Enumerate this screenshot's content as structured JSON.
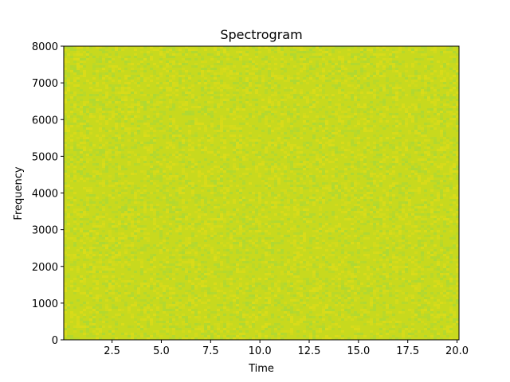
{
  "chart_data": {
    "type": "heatmap",
    "title": "Spectrogram",
    "xlabel": "Time",
    "ylabel": "Frequency",
    "xlim": [
      0.05,
      20.1
    ],
    "ylim": [
      0,
      8000
    ],
    "x_ticks": [
      2.5,
      5.0,
      7.5,
      10.0,
      12.5,
      15.0,
      17.5,
      20.0
    ],
    "x_tick_labels": [
      "2.5",
      "5.0",
      "7.5",
      "10.0",
      "12.5",
      "15.0",
      "17.5",
      "20.0"
    ],
    "y_ticks": [
      0,
      1000,
      2000,
      3000,
      4000,
      5000,
      6000,
      7000,
      8000
    ],
    "y_tick_labels": [
      "0",
      "1000",
      "2000",
      "3000",
      "4000",
      "5000",
      "6000",
      "7000",
      "8000"
    ],
    "colors": {
      "dominant": "#c8d91e",
      "variation_low": "#a8d838",
      "variation_high": "#e0dc18"
    },
    "grid": false,
    "legend": "none"
  }
}
